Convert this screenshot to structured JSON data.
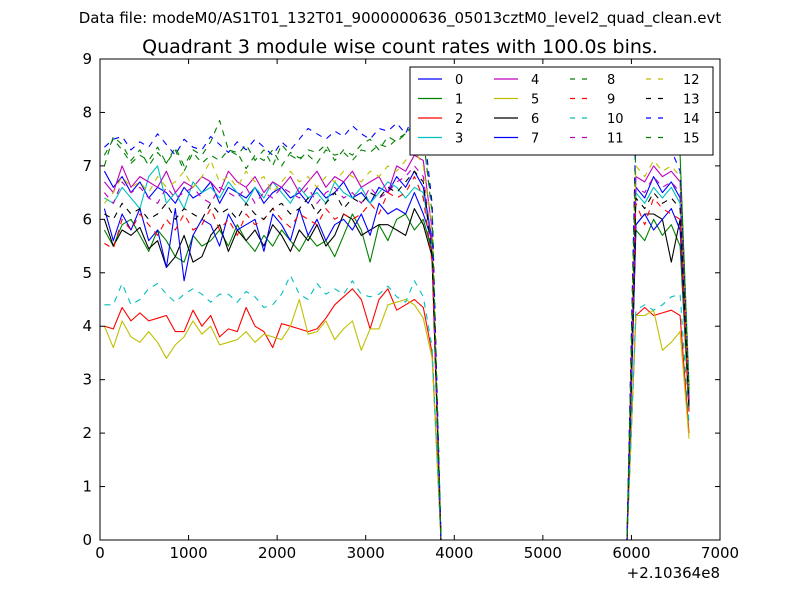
{
  "figure": {
    "suptitle": "Data file: modeM0/AS1T01_132T01_9000000636_05013cztM0_level2_quad_clean.evt"
  },
  "chart_data": {
    "type": "line",
    "title": "Quadrant 3 module wise count rates with 100.0s bins.",
    "xlabel": "",
    "ylabel": "",
    "x_offset_label": "+2.10364e8",
    "xlim": [
      0,
      7000
    ],
    "ylim": [
      0,
      9
    ],
    "xticks": [
      0,
      1000,
      2000,
      3000,
      4000,
      5000,
      6000,
      7000
    ],
    "yticks": [
      0,
      1,
      2,
      3,
      4,
      5,
      6,
      7,
      8,
      9
    ],
    "grid": false,
    "legend_position": "top-right",
    "legend_columns": 4,
    "x": [
      50,
      150,
      250,
      350,
      450,
      550,
      650,
      750,
      850,
      950,
      1050,
      1150,
      1250,
      1350,
      1450,
      1550,
      1650,
      1750,
      1850,
      1950,
      2050,
      2150,
      2250,
      2350,
      2450,
      2550,
      2650,
      2750,
      2850,
      2950,
      3050,
      3150,
      3250,
      3350,
      3450,
      3550,
      3650,
      3750,
      3850,
      3950,
      4050,
      4150,
      4250,
      4350,
      4450,
      4550,
      4650,
      4750,
      4850,
      4950,
      5050,
      5150,
      5250,
      5350,
      5450,
      5550,
      5650,
      5750,
      5850,
      5950,
      6050,
      6150,
      6250,
      6350,
      6450,
      6550,
      6650
    ],
    "series": [
      {
        "name": "0",
        "color": "#0000ff",
        "dash": "solid",
        "values": [
          6.9,
          6.6,
          6.8,
          6.5,
          6.7,
          6.4,
          6.6,
          6.5,
          6.3,
          6.6,
          6.4,
          6.5,
          6.7,
          6.3,
          6.6,
          6.5,
          6.4,
          6.6,
          6.3,
          6.5,
          6.6,
          6.4,
          6.5,
          6.3,
          6.6,
          6.4,
          6.5,
          6.7,
          6.4,
          6.5,
          6.3,
          6.6,
          6.5,
          6.8,
          6.6,
          6.9,
          6.6,
          5.6,
          0,
          0,
          0,
          0,
          0,
          0,
          0,
          0,
          0,
          0,
          0,
          0,
          0,
          0,
          0,
          0,
          0,
          0,
          0,
          0,
          0,
          0,
          6.6,
          6.4,
          6.8,
          6.5,
          6.7,
          6.4,
          2.7
        ]
      },
      {
        "name": "1",
        "color": "#008000",
        "dash": "solid",
        "values": [
          5.8,
          5.5,
          5.9,
          6.0,
          5.7,
          5.4,
          5.8,
          5.6,
          5.3,
          5.2,
          5.7,
          5.5,
          5.6,
          5.8,
          5.5,
          5.9,
          5.6,
          5.4,
          5.7,
          5.5,
          5.8,
          5.6,
          5.4,
          5.7,
          5.5,
          5.6,
          5.3,
          5.7,
          6.1,
          5.8,
          5.2,
          5.9,
          5.6,
          6.0,
          6.1,
          5.8,
          6.0,
          5.4,
          0,
          0,
          0,
          0,
          0,
          0,
          0,
          0,
          0,
          0,
          0,
          0,
          0,
          0,
          0,
          0,
          0,
          0,
          0,
          0,
          0,
          0,
          5.8,
          5.6,
          6.0,
          5.7,
          5.9,
          5.5,
          2.4
        ]
      },
      {
        "name": "2",
        "color": "#ff0000",
        "dash": "solid",
        "values": [
          4.0,
          3.95,
          4.35,
          4.1,
          4.25,
          4.1,
          4.15,
          4.2,
          3.9,
          3.9,
          4.3,
          4.0,
          4.2,
          3.8,
          3.95,
          3.9,
          4.35,
          4.0,
          3.9,
          3.6,
          4.05,
          4.0,
          3.95,
          3.9,
          3.95,
          4.15,
          4.4,
          4.55,
          4.7,
          4.5,
          3.95,
          4.5,
          4.7,
          4.3,
          4.4,
          4.5,
          4.35,
          3.5,
          0,
          0,
          0,
          0,
          0,
          0,
          0,
          0,
          0,
          0,
          0,
          0,
          0,
          0,
          0,
          0,
          0,
          0,
          0,
          0,
          0,
          0,
          4.2,
          4.35,
          4.2,
          4.25,
          4.3,
          4.2,
          2.0
        ]
      },
      {
        "name": "3",
        "color": "#00bfbf",
        "dash": "solid",
        "values": [
          6.4,
          6.3,
          6.6,
          6.4,
          6.2,
          6.8,
          7.0,
          6.3,
          6.5,
          6.2,
          6.7,
          6.5,
          6.6,
          6.4,
          6.7,
          6.5,
          6.3,
          6.6,
          6.4,
          6.7,
          6.5,
          6.3,
          6.6,
          6.4,
          6.5,
          6.3,
          6.7,
          6.5,
          6.4,
          6.6,
          6.3,
          6.5,
          6.7,
          6.6,
          6.4,
          6.6,
          6.5,
          5.5,
          0,
          0,
          0,
          0,
          0,
          0,
          0,
          0,
          0,
          0,
          0,
          0,
          0,
          0,
          0,
          0,
          0,
          0,
          0,
          0,
          0,
          0,
          6.5,
          6.3,
          6.6,
          6.4,
          6.6,
          6.3,
          2.6
        ]
      },
      {
        "name": "4",
        "color": "#bf00bf",
        "dash": "solid",
        "values": [
          6.7,
          6.5,
          7.0,
          6.6,
          6.8,
          6.7,
          6.6,
          6.9,
          6.5,
          6.7,
          6.6,
          6.8,
          6.7,
          6.5,
          6.9,
          6.7,
          6.6,
          6.8,
          6.5,
          6.7,
          6.6,
          6.8,
          6.5,
          6.7,
          6.9,
          6.6,
          6.8,
          6.7,
          6.9,
          6.6,
          6.7,
          6.8,
          6.5,
          7.0,
          6.9,
          7.2,
          7.1,
          5.8,
          0,
          0,
          0,
          0,
          0,
          0,
          0,
          0,
          0,
          0,
          0,
          0,
          0,
          0,
          0,
          0,
          0,
          0,
          0,
          0,
          0,
          0,
          6.8,
          6.7,
          7.0,
          6.8,
          6.9,
          6.7,
          2.8
        ]
      },
      {
        "name": "5",
        "color": "#bfbf00",
        "dash": "solid",
        "values": [
          4.0,
          3.6,
          4.1,
          3.8,
          3.7,
          3.9,
          3.7,
          3.4,
          3.65,
          3.8,
          4.1,
          3.85,
          4.0,
          3.65,
          3.7,
          3.75,
          3.9,
          3.7,
          3.85,
          3.8,
          3.75,
          4.0,
          4.5,
          3.85,
          3.9,
          4.1,
          3.75,
          3.95,
          4.1,
          3.55,
          3.95,
          3.95,
          4.4,
          4.45,
          4.5,
          4.4,
          4.15,
          3.4,
          0,
          0,
          0,
          0,
          0,
          0,
          0,
          0,
          0,
          0,
          0,
          0,
          0,
          0,
          0,
          0,
          0,
          0,
          0,
          0,
          0,
          0,
          4.2,
          4.2,
          4.3,
          3.55,
          3.7,
          3.9,
          1.9
        ]
      },
      {
        "name": "6",
        "color": "#000000",
        "dash": "solid",
        "values": [
          6.0,
          5.5,
          5.8,
          5.7,
          5.85,
          5.45,
          5.6,
          5.1,
          5.3,
          5.7,
          5.2,
          5.3,
          5.7,
          5.9,
          5.4,
          5.8,
          5.6,
          5.8,
          5.5,
          5.9,
          5.7,
          5.4,
          5.8,
          5.6,
          5.9,
          5.5,
          5.7,
          6.1,
          6.0,
          5.7,
          5.8,
          5.9,
          5.9,
          5.8,
          5.7,
          6.2,
          5.9,
          5.3,
          0,
          0,
          0,
          0,
          0,
          0,
          0,
          0,
          0,
          0,
          0,
          0,
          0,
          0,
          0,
          0,
          0,
          0,
          0,
          0,
          0,
          0,
          5.9,
          6.1,
          6.1,
          6.0,
          5.2,
          6.0,
          2.5
        ]
      },
      {
        "name": "7",
        "color": "#0000ff",
        "dash": "solid",
        "values": [
          6.2,
          5.6,
          6.1,
          5.8,
          6.2,
          5.6,
          5.8,
          5.1,
          6.2,
          4.85,
          5.7,
          6.0,
          5.9,
          5.5,
          6.1,
          5.8,
          5.9,
          6.0,
          5.4,
          6.1,
          5.9,
          5.6,
          6.2,
          5.7,
          6.0,
          5.6,
          5.9,
          6.0,
          5.8,
          6.1,
          5.7,
          6.3,
          6.1,
          6.2,
          6.1,
          6.5,
          6.1,
          5.6,
          0,
          0,
          0,
          0,
          0,
          0,
          0,
          0,
          0,
          0,
          0,
          0,
          0,
          0,
          0,
          0,
          0,
          0,
          0,
          0,
          0,
          0,
          5.9,
          6.1,
          5.8,
          6.0,
          6.2,
          5.8,
          2.6
        ]
      },
      {
        "name": "8",
        "color": "#008000",
        "dash": "dashed",
        "values": [
          7.0,
          7.55,
          7.4,
          7.1,
          7.3,
          7.0,
          7.25,
          7.05,
          7.35,
          7.0,
          7.3,
          7.2,
          7.45,
          7.85,
          7.3,
          7.2,
          7.4,
          7.1,
          7.3,
          7.0,
          7.4,
          7.2,
          7.1,
          7.3,
          7.25,
          7.4,
          7.1,
          7.3,
          7.2,
          7.4,
          7.5,
          7.3,
          7.55,
          7.45,
          7.6,
          7.8,
          7.5,
          6.2,
          0,
          0,
          0,
          0,
          0,
          0,
          0,
          0,
          0,
          0,
          0,
          0,
          0,
          0,
          0,
          0,
          0,
          0,
          0,
          0,
          0,
          0,
          7.7,
          7.3,
          7.6,
          7.3,
          7.5,
          7.2,
          2.9
        ]
      },
      {
        "name": "9",
        "color": "#ff0000",
        "dash": "dashed",
        "values": [
          5.55,
          5.45,
          6.0,
          5.8,
          6.1,
          5.9,
          5.7,
          6.0,
          5.8,
          6.1,
          5.8,
          5.9,
          6.2,
          5.8,
          6.0,
          5.7,
          6.1,
          5.9,
          6.0,
          6.2,
          6.0,
          5.85,
          6.1,
          6.0,
          5.9,
          6.2,
          6.0,
          6.1,
          6.0,
          6.1,
          6.3,
          6.1,
          6.5,
          6.4,
          6.5,
          6.8,
          6.4,
          5.2,
          0,
          0,
          0,
          0,
          0,
          0,
          0,
          0,
          0,
          0,
          0,
          0,
          0,
          0,
          0,
          0,
          0,
          0,
          0,
          0,
          0,
          0,
          6.3,
          5.9,
          6.4,
          6.2,
          6.1,
          6.0,
          2.4
        ]
      },
      {
        "name": "10",
        "color": "#00bfbf",
        "dash": "dashed",
        "values": [
          4.4,
          4.4,
          4.8,
          4.4,
          4.5,
          4.7,
          4.8,
          4.6,
          4.45,
          4.6,
          4.7,
          4.6,
          4.45,
          4.6,
          4.6,
          4.45,
          4.65,
          4.55,
          4.35,
          4.4,
          4.6,
          4.95,
          4.6,
          4.5,
          4.8,
          4.6,
          4.7,
          4.6,
          4.85,
          4.6,
          4.55,
          4.6,
          4.75,
          4.55,
          4.45,
          4.85,
          4.55,
          3.6,
          0,
          0,
          0,
          0,
          0,
          0,
          0,
          0,
          0,
          0,
          0,
          0,
          0,
          0,
          0,
          0,
          0,
          0,
          0,
          0,
          0,
          0,
          4.3,
          4.4,
          4.3,
          4.4,
          4.55,
          4.6,
          2.2
        ]
      },
      {
        "name": "11",
        "color": "#bf00bf",
        "dash": "dashed",
        "values": [
          6.5,
          6.3,
          6.7,
          6.5,
          6.6,
          6.4,
          6.3,
          6.6,
          6.4,
          6.5,
          6.6,
          6.4,
          6.3,
          6.6,
          6.5,
          6.4,
          6.6,
          6.3,
          6.5,
          6.4,
          6.6,
          6.5,
          6.4,
          6.6,
          6.3,
          6.5,
          6.6,
          6.4,
          6.5,
          6.3,
          6.6,
          6.4,
          6.5,
          6.7,
          6.8,
          7.0,
          6.8,
          5.5,
          0,
          0,
          0,
          0,
          0,
          0,
          0,
          0,
          0,
          0,
          0,
          0,
          0,
          0,
          0,
          0,
          0,
          0,
          0,
          0,
          0,
          0,
          6.6,
          6.5,
          6.8,
          6.6,
          6.7,
          6.5,
          2.7
        ]
      },
      {
        "name": "12",
        "color": "#bfbf00",
        "dash": "dashed",
        "values": [
          6.3,
          6.5,
          6.8,
          6.6,
          6.7,
          6.5,
          6.8,
          6.6,
          6.7,
          6.9,
          6.6,
          6.8,
          7.1,
          6.7,
          6.8,
          6.6,
          6.9,
          6.7,
          6.8,
          6.5,
          6.7,
          6.9,
          6.7,
          6.8,
          6.6,
          6.8,
          6.7,
          6.9,
          6.8,
          6.7,
          6.9,
          6.8,
          7.0,
          6.9,
          7.1,
          7.3,
          7.0,
          5.8,
          0,
          0,
          0,
          0,
          0,
          0,
          0,
          0,
          0,
          0,
          0,
          0,
          0,
          0,
          0,
          0,
          0,
          0,
          0,
          0,
          0,
          0,
          7.0,
          6.8,
          7.1,
          6.9,
          7.0,
          6.8,
          2.8
        ]
      },
      {
        "name": "13",
        "color": "#000000",
        "dash": "dashed",
        "values": [
          6.1,
          6.0,
          6.3,
          6.1,
          6.2,
          6.0,
          6.1,
          6.3,
          6.0,
          6.2,
          6.1,
          6.0,
          6.3,
          6.1,
          6.2,
          6.0,
          6.3,
          6.1,
          6.0,
          6.2,
          6.3,
          6.1,
          6.2,
          6.4,
          6.1,
          6.3,
          6.5,
          6.2,
          6.4,
          6.3,
          6.5,
          6.4,
          6.6,
          6.5,
          6.7,
          6.9,
          6.7,
          5.3,
          0,
          0,
          0,
          0,
          0,
          0,
          0,
          0,
          0,
          0,
          0,
          0,
          0,
          0,
          0,
          0,
          0,
          0,
          0,
          0,
          0,
          0,
          6.4,
          6.2,
          6.5,
          6.3,
          6.4,
          6.2,
          2.5
        ]
      },
      {
        "name": "14",
        "color": "#0000ff",
        "dash": "dashed",
        "values": [
          7.35,
          7.5,
          7.55,
          7.3,
          7.45,
          7.35,
          7.6,
          7.4,
          7.2,
          7.5,
          7.35,
          7.3,
          7.55,
          7.4,
          7.25,
          7.45,
          7.3,
          7.5,
          7.35,
          7.2,
          7.45,
          7.3,
          7.5,
          7.7,
          7.6,
          7.5,
          7.65,
          7.55,
          7.75,
          7.6,
          7.5,
          7.7,
          7.65,
          7.8,
          7.6,
          8.0,
          7.8,
          6.3,
          0,
          0,
          0,
          0,
          0,
          0,
          0,
          0,
          0,
          0,
          0,
          0,
          0,
          0,
          0,
          0,
          0,
          0,
          0,
          0,
          0,
          0,
          7.8,
          7.6,
          7.4,
          7.5,
          7.3,
          6.9,
          2.9
        ]
      },
      {
        "name": "15",
        "color": "#008000",
        "dash": "dashed",
        "values": [
          7.2,
          7.5,
          7.3,
          7.05,
          7.2,
          7.1,
          7.35,
          7.05,
          7.3,
          6.9,
          7.25,
          7.05,
          7.2,
          7.1,
          7.3,
          7.25,
          6.95,
          7.2,
          7.1,
          7.3,
          7.0,
          7.25,
          7.15,
          7.2,
          7.05,
          7.3,
          7.2,
          7.25,
          7.1,
          7.3,
          7.25,
          7.4,
          7.35,
          7.5,
          7.6,
          7.7,
          7.55,
          6.1,
          0,
          0,
          0,
          0,
          0,
          0,
          0,
          0,
          0,
          0,
          0,
          0,
          0,
          0,
          0,
          0,
          0,
          0,
          0,
          0,
          0,
          0,
          7.5,
          7.3,
          7.55,
          7.35,
          7.45,
          7.2,
          2.8
        ]
      }
    ]
  }
}
